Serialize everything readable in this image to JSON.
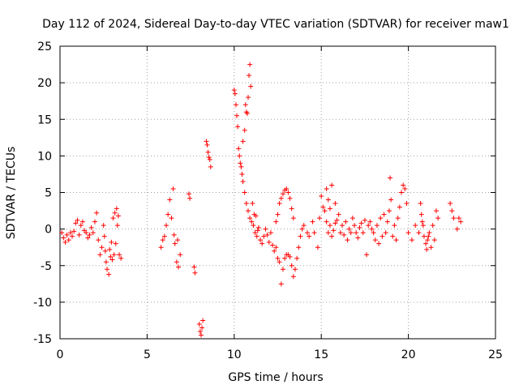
{
  "chart_data": {
    "type": "scatter",
    "title": "Day 112 of 2024, Sidereal Day-to-day VTEC variation (SDTVAR) for receiver maw1",
    "xlabel": "GPS time / hours",
    "ylabel": "SDTVAR / TECUs",
    "xlim": [
      0,
      25
    ],
    "ylim": [
      -15,
      25
    ],
    "xticks": [
      "0",
      "5",
      "10",
      "15",
      "20",
      "25"
    ],
    "yticks": [
      "-15",
      "-10",
      "-5",
      "0",
      "5",
      "10",
      "15",
      "20",
      "25"
    ],
    "grid": true,
    "marker": "+",
    "color": "#ff0000",
    "series": [
      {
        "name": "SDTVAR",
        "points": [
          [
            0.1,
            -0.5
          ],
          [
            0.2,
            -1.2
          ],
          [
            0.3,
            -1.8
          ],
          [
            0.4,
            -0.8
          ],
          [
            0.5,
            -1.5
          ],
          [
            0.6,
            -0.5
          ],
          [
            0.7,
            -1.0
          ],
          [
            0.8,
            -0.3
          ],
          [
            0.9,
            0.8
          ],
          [
            1.0,
            1.2
          ],
          [
            1.1,
            -0.8
          ],
          [
            1.2,
            0.5
          ],
          [
            1.3,
            1.0
          ],
          [
            1.4,
            -0.2
          ],
          [
            1.5,
            -0.5
          ],
          [
            1.6,
            -1.2
          ],
          [
            1.7,
            -0.8
          ],
          [
            1.8,
            0.2
          ],
          [
            1.9,
            -0.5
          ],
          [
            2.0,
            1.0
          ],
          [
            2.1,
            2.2
          ],
          [
            2.2,
            -1.5
          ],
          [
            2.3,
            -3.5
          ],
          [
            2.4,
            -2.5
          ],
          [
            2.5,
            0.5
          ],
          [
            2.6,
            -3.0
          ],
          [
            2.7,
            -5.5
          ],
          [
            2.8,
            -6.2
          ],
          [
            2.9,
            -3.8
          ],
          [
            3.0,
            -4.2
          ],
          [
            3.1,
            -3.5
          ],
          [
            3.2,
            -2.0
          ],
          [
            3.3,
            0.5
          ],
          [
            3.4,
            -3.5
          ],
          [
            3.5,
            -4.0
          ],
          [
            3.05,
            1.5
          ],
          [
            3.15,
            2.2
          ],
          [
            3.25,
            2.8
          ],
          [
            3.35,
            1.8
          ],
          [
            2.85,
            -2.8
          ],
          [
            2.95,
            -1.8
          ],
          [
            2.65,
            -4.5
          ],
          [
            2.55,
            -1.0
          ],
          [
            5.8,
            -2.5
          ],
          [
            5.9,
            -1.5
          ],
          [
            6.0,
            -1.0
          ],
          [
            6.1,
            0.5
          ],
          [
            6.2,
            2.0
          ],
          [
            6.3,
            4.0
          ],
          [
            6.5,
            5.5
          ],
          [
            6.6,
            -2.0
          ],
          [
            6.7,
            -4.5
          ],
          [
            6.8,
            -5.2
          ],
          [
            6.9,
            -3.5
          ],
          [
            6.4,
            1.5
          ],
          [
            6.55,
            -0.8
          ],
          [
            6.75,
            -1.5
          ],
          [
            7.4,
            4.8
          ],
          [
            7.45,
            4.2
          ],
          [
            7.7,
            -5.2
          ],
          [
            7.75,
            -6.0
          ],
          [
            8.0,
            -13.0
          ],
          [
            8.05,
            -14.0
          ],
          [
            8.1,
            -14.5
          ],
          [
            8.15,
            -13.5
          ],
          [
            8.2,
            -12.5
          ],
          [
            8.4,
            12.0
          ],
          [
            8.45,
            11.5
          ],
          [
            8.5,
            10.5
          ],
          [
            8.55,
            9.8
          ],
          [
            8.6,
            9.5
          ],
          [
            8.65,
            8.5
          ],
          [
            10.0,
            19.0
          ],
          [
            10.05,
            18.5
          ],
          [
            10.1,
            17.0
          ],
          [
            10.15,
            15.5
          ],
          [
            10.2,
            14.0
          ],
          [
            10.25,
            11.0
          ],
          [
            10.3,
            10.0
          ],
          [
            10.35,
            9.0
          ],
          [
            10.4,
            8.5
          ],
          [
            10.45,
            7.5
          ],
          [
            10.5,
            6.5
          ],
          [
            10.6,
            5.0
          ],
          [
            10.7,
            3.5
          ],
          [
            10.8,
            2.5
          ],
          [
            10.9,
            1.5
          ],
          [
            10.5,
            12.0
          ],
          [
            10.6,
            13.5
          ],
          [
            10.7,
            16.0
          ],
          [
            10.8,
            18.0
          ],
          [
            10.85,
            21.0
          ],
          [
            10.9,
            22.5
          ],
          [
            10.95,
            19.5
          ],
          [
            10.75,
            15.8
          ],
          [
            10.65,
            17.0
          ],
          [
            11.0,
            1.0
          ],
          [
            11.1,
            0.5
          ],
          [
            11.2,
            -0.5
          ],
          [
            11.3,
            -1.0
          ],
          [
            11.4,
            0.2
          ],
          [
            11.5,
            -1.5
          ],
          [
            11.6,
            -2.0
          ],
          [
            11.7,
            -1.0
          ],
          [
            11.8,
            0.0
          ],
          [
            11.9,
            -0.8
          ],
          [
            12.0,
            -1.8
          ],
          [
            12.1,
            -0.5
          ],
          [
            12.2,
            -2.2
          ],
          [
            12.3,
            -3.0
          ],
          [
            12.4,
            -2.5
          ],
          [
            12.5,
            -4.0
          ],
          [
            12.6,
            -4.5
          ],
          [
            12.7,
            -7.5
          ],
          [
            12.8,
            -5.5
          ],
          [
            12.9,
            -4.0
          ],
          [
            13.0,
            -3.5
          ],
          [
            13.1,
            -3.5
          ],
          [
            13.2,
            -3.8
          ],
          [
            13.3,
            -5.0
          ],
          [
            13.4,
            -6.5
          ],
          [
            13.5,
            -5.5
          ],
          [
            13.6,
            -4.0
          ],
          [
            13.7,
            -2.5
          ],
          [
            13.8,
            -1.0
          ],
          [
            13.9,
            0.0
          ],
          [
            11.05,
            3.5
          ],
          [
            11.15,
            2.0
          ],
          [
            11.25,
            1.8
          ],
          [
            11.35,
            -0.2
          ],
          [
            12.4,
            1.0
          ],
          [
            12.5,
            2.0
          ],
          [
            12.6,
            3.5
          ],
          [
            12.7,
            4.2
          ],
          [
            12.8,
            4.8
          ],
          [
            12.9,
            5.3
          ],
          [
            13.0,
            5.5
          ],
          [
            13.1,
            5.0
          ],
          [
            13.2,
            4.2
          ],
          [
            13.3,
            2.8
          ],
          [
            13.4,
            1.5
          ],
          [
            14.0,
            0.5
          ],
          [
            14.2,
            -0.5
          ],
          [
            14.3,
            -1.0
          ],
          [
            14.5,
            1.0
          ],
          [
            14.6,
            -0.5
          ],
          [
            14.8,
            -2.5
          ],
          [
            14.9,
            1.5
          ],
          [
            15.0,
            4.5
          ],
          [
            15.1,
            3.0
          ],
          [
            15.2,
            2.5
          ],
          [
            15.3,
            1.0
          ],
          [
            15.4,
            -0.5
          ],
          [
            15.5,
            0.5
          ],
          [
            15.6,
            -1.0
          ],
          [
            15.7,
            -0.2
          ],
          [
            15.8,
            0.8
          ],
          [
            15.9,
            1.2
          ],
          [
            16.0,
            2.0
          ],
          [
            16.1,
            -0.5
          ],
          [
            16.2,
            0.5
          ],
          [
            16.3,
            -0.8
          ],
          [
            16.4,
            1.0
          ],
          [
            16.5,
            -1.5
          ],
          [
            16.6,
            0.0
          ],
          [
            16.7,
            -0.5
          ],
          [
            16.8,
            1.5
          ],
          [
            16.9,
            0.5
          ],
          [
            17.0,
            -0.5
          ],
          [
            17.1,
            -1.2
          ],
          [
            17.2,
            0.2
          ],
          [
            17.3,
            0.8
          ],
          [
            17.4,
            -0.5
          ],
          [
            17.5,
            1.2
          ],
          [
            17.6,
            -3.5
          ],
          [
            17.7,
            0.5
          ],
          [
            17.8,
            1.0
          ],
          [
            17.9,
            0.0
          ],
          [
            18.0,
            -0.5
          ],
          [
            18.1,
            -1.5
          ],
          [
            18.2,
            0.5
          ],
          [
            18.3,
            -2.0
          ],
          [
            18.4,
            1.5
          ],
          [
            18.5,
            -1.0
          ],
          [
            18.6,
            2.0
          ],
          [
            18.7,
            -0.5
          ],
          [
            18.8,
            1.0
          ],
          [
            18.9,
            2.5
          ],
          [
            19.0,
            4.0
          ],
          [
            19.1,
            -1.0
          ],
          [
            19.2,
            0.5
          ],
          [
            19.3,
            -1.5
          ],
          [
            19.4,
            1.5
          ],
          [
            19.5,
            3.0
          ],
          [
            19.6,
            5.0
          ],
          [
            19.7,
            6.0
          ],
          [
            19.8,
            5.5
          ],
          [
            19.9,
            3.5
          ],
          [
            15.3,
            5.5
          ],
          [
            15.4,
            4.0
          ],
          [
            15.5,
            2.8
          ],
          [
            15.6,
            6.0
          ],
          [
            15.8,
            3.5
          ],
          [
            18.95,
            7.0
          ],
          [
            20.0,
            -0.5
          ],
          [
            20.2,
            -1.5
          ],
          [
            20.4,
            0.5
          ],
          [
            20.6,
            -0.5
          ],
          [
            20.8,
            1.0
          ],
          [
            20.9,
            -1.0
          ],
          [
            21.0,
            -2.0
          ],
          [
            21.1,
            -1.5
          ],
          [
            21.2,
            -0.5
          ],
          [
            21.3,
            -2.5
          ],
          [
            21.4,
            0.5
          ],
          [
            21.5,
            -1.5
          ],
          [
            21.6,
            2.5
          ],
          [
            21.7,
            1.5
          ],
          [
            22.4,
            3.5
          ],
          [
            22.5,
            2.5
          ],
          [
            22.6,
            1.5
          ],
          [
            22.8,
            0.0
          ],
          [
            22.9,
            1.5
          ],
          [
            23.0,
            1.0
          ],
          [
            20.7,
            3.5
          ],
          [
            20.75,
            2.0
          ],
          [
            20.85,
            0.5
          ],
          [
            21.05,
            -2.8
          ],
          [
            21.15,
            -1.0
          ]
        ]
      }
    ]
  }
}
